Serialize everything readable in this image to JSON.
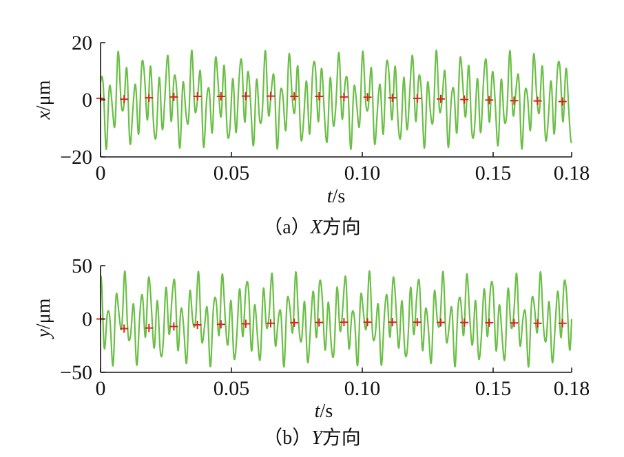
{
  "chart_data": [
    {
      "type": "line",
      "caption_prefix": "（a）",
      "caption_var": "X",
      "caption_suffix": "方向",
      "xlabel_var": "t",
      "xlabel_unit": "/s",
      "ylabel_var": "x",
      "ylabel_unit": "/μm",
      "xlim": [
        0,
        0.18
      ],
      "ylim": [
        -20,
        20
      ],
      "xticks": [
        {
          "v": 0,
          "label": "0"
        },
        {
          "v": 0.05,
          "label": "0.05"
        },
        {
          "v": 0.1,
          "label": "0.10"
        },
        {
          "v": 0.15,
          "label": "0.15"
        },
        {
          "v": 0.18,
          "label": "0.18"
        }
      ],
      "yticks": [
        {
          "v": 20,
          "label": "20"
        },
        {
          "v": 0,
          "label": "0"
        },
        {
          "v": -20,
          "label": "−20"
        }
      ],
      "signal": {
        "freq_hz": 107,
        "amp1": 11,
        "amp2": 5,
        "phase": 0.3,
        "offset": -2
      },
      "line_color": "#6abf45",
      "marker_color": "#e0201b",
      "markers": {
        "x": [
          0,
          0.009,
          0.0185,
          0.028,
          0.037,
          0.046,
          0.0555,
          0.065,
          0.074,
          0.0835,
          0.093,
          0.102,
          0.1115,
          0.121,
          0.13,
          0.139,
          0.1485,
          0.158,
          0.167,
          0.1765
        ],
        "y": [
          0.5,
          0.2,
          0.7,
          1.0,
          1.2,
          1.2,
          1.3,
          1.3,
          1.2,
          1.2,
          1.0,
          0.9,
          0.7,
          0.5,
          0.3,
          0.1,
          -0.1,
          -0.3,
          -0.4,
          -0.6
        ]
      }
    },
    {
      "type": "line",
      "caption_prefix": "（b）",
      "caption_var": "Y",
      "caption_suffix": "方向",
      "xlabel_var": "t",
      "xlabel_unit": "/s",
      "ylabel_var": "y",
      "ylabel_unit": "/μm",
      "xlim": [
        0,
        0.18
      ],
      "ylim": [
        -50,
        50
      ],
      "xticks": [
        {
          "v": 0,
          "label": "0"
        },
        {
          "v": 0.05,
          "label": "0.05"
        },
        {
          "v": 0.1,
          "label": "0.10"
        },
        {
          "v": 0.15,
          "label": "0.15"
        },
        {
          "v": 0.18,
          "label": "0.18"
        }
      ],
      "yticks": [
        {
          "v": 50,
          "label": "50"
        },
        {
          "v": 0,
          "label": "0"
        },
        {
          "v": -50,
          "label": "−50"
        }
      ],
      "signal": {
        "freq_hz": 107,
        "amp1": 32,
        "amp2": 14,
        "phase": 1.1,
        "offset": 5
      },
      "line_color": "#6abf45",
      "marker_color": "#e0201b",
      "markers": {
        "x": [
          0,
          0.009,
          0.0185,
          0.028,
          0.037,
          0.046,
          0.0555,
          0.065,
          0.074,
          0.0835,
          0.093,
          0.102,
          0.1115,
          0.121,
          0.13,
          0.139,
          0.1485,
          0.158,
          0.167,
          0.1765
        ],
        "y": [
          0,
          -9,
          -8.5,
          -7,
          -5.5,
          -5,
          -4.5,
          -4,
          -3.5,
          -3.2,
          -3,
          -3,
          -3,
          -3,
          -3.2,
          -3.3,
          -3.5,
          -3.7,
          -4,
          -4
        ]
      }
    }
  ]
}
